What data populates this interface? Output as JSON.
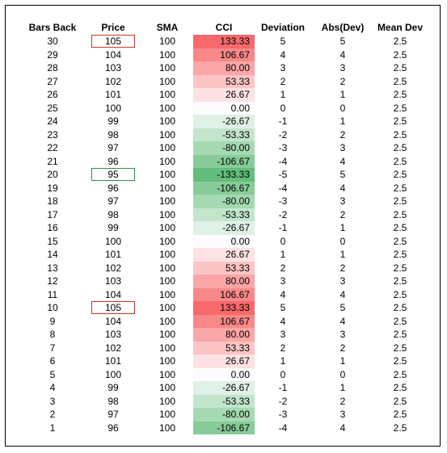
{
  "headers": [
    "Bars Back",
    "Price",
    "SMA",
    "CCI",
    "Deviation",
    "Abs(Dev)",
    "Mean Dev"
  ],
  "rows": [
    {
      "bars": "30",
      "price": "105",
      "sma": "100",
      "cci": "133.33",
      "dev": "5",
      "abs": "5",
      "mean": "2.5",
      "box": "red",
      "color": "#f8696b"
    },
    {
      "bars": "29",
      "price": "104",
      "sma": "100",
      "cci": "106.67",
      "dev": "4",
      "abs": "4",
      "mean": "2.5",
      "box": "",
      "color": "#f98889"
    },
    {
      "bars": "28",
      "price": "103",
      "sma": "100",
      "cci": "80.00",
      "dev": "3",
      "abs": "3",
      "mean": "2.5",
      "box": "",
      "color": "#faa6a7"
    },
    {
      "bars": "27",
      "price": "102",
      "sma": "100",
      "cci": "53.33",
      "dev": "2",
      "abs": "2",
      "mean": "2.5",
      "box": "",
      "color": "#fcc4c5"
    },
    {
      "bars": "26",
      "price": "101",
      "sma": "100",
      "cci": "26.67",
      "dev": "1",
      "abs": "1",
      "mean": "2.5",
      "box": "",
      "color": "#fde2e3"
    },
    {
      "bars": "25",
      "price": "100",
      "sma": "100",
      "cci": "0.00",
      "dev": "0",
      "abs": "0",
      "mean": "2.5",
      "box": "",
      "color": "#fcfcff"
    },
    {
      "bars": "24",
      "price": "99",
      "sma": "100",
      "cci": "-26.67",
      "dev": "-1",
      "abs": "1",
      "mean": "2.5",
      "box": "",
      "color": "#dff1e5"
    },
    {
      "bars": "23",
      "price": "98",
      "sma": "100",
      "cci": "-53.33",
      "dev": "-2",
      "abs": "2",
      "mean": "2.5",
      "box": "",
      "color": "#c2e5cc"
    },
    {
      "bars": "22",
      "price": "97",
      "sma": "100",
      "cci": "-80.00",
      "dev": "-3",
      "abs": "3",
      "mean": "2.5",
      "box": "",
      "color": "#a5d9b2"
    },
    {
      "bars": "21",
      "price": "96",
      "sma": "100",
      "cci": "-106.67",
      "dev": "-4",
      "abs": "4",
      "mean": "2.5",
      "box": "",
      "color": "#87cc98"
    },
    {
      "bars": "20",
      "price": "95",
      "sma": "100",
      "cci": "-133.33",
      "dev": "-5",
      "abs": "5",
      "mean": "2.5",
      "box": "green",
      "color": "#63be7b"
    },
    {
      "bars": "19",
      "price": "96",
      "sma": "100",
      "cci": "-106.67",
      "dev": "-4",
      "abs": "4",
      "mean": "2.5",
      "box": "",
      "color": "#87cc98"
    },
    {
      "bars": "18",
      "price": "97",
      "sma": "100",
      "cci": "-80.00",
      "dev": "-3",
      "abs": "3",
      "mean": "2.5",
      "box": "",
      "color": "#a5d9b2"
    },
    {
      "bars": "17",
      "price": "98",
      "sma": "100",
      "cci": "-53.33",
      "dev": "-2",
      "abs": "2",
      "mean": "2.5",
      "box": "",
      "color": "#c2e5cc"
    },
    {
      "bars": "16",
      "price": "99",
      "sma": "100",
      "cci": "-26.67",
      "dev": "-1",
      "abs": "1",
      "mean": "2.5",
      "box": "",
      "color": "#dff1e5"
    },
    {
      "bars": "15",
      "price": "100",
      "sma": "100",
      "cci": "0.00",
      "dev": "0",
      "abs": "0",
      "mean": "2.5",
      "box": "",
      "color": "#fcfcff"
    },
    {
      "bars": "14",
      "price": "101",
      "sma": "100",
      "cci": "26.67",
      "dev": "1",
      "abs": "1",
      "mean": "2.5",
      "box": "",
      "color": "#fde2e3"
    },
    {
      "bars": "13",
      "price": "102",
      "sma": "100",
      "cci": "53.33",
      "dev": "2",
      "abs": "2",
      "mean": "2.5",
      "box": "",
      "color": "#fcc4c5"
    },
    {
      "bars": "12",
      "price": "103",
      "sma": "100",
      "cci": "80.00",
      "dev": "3",
      "abs": "3",
      "mean": "2.5",
      "box": "",
      "color": "#faa6a7"
    },
    {
      "bars": "11",
      "price": "104",
      "sma": "100",
      "cci": "106.67",
      "dev": "4",
      "abs": "4",
      "mean": "2.5",
      "box": "",
      "color": "#f98889"
    },
    {
      "bars": "10",
      "price": "105",
      "sma": "100",
      "cci": "133.33",
      "dev": "5",
      "abs": "5",
      "mean": "2.5",
      "box": "red",
      "color": "#f8696b"
    },
    {
      "bars": "9",
      "price": "104",
      "sma": "100",
      "cci": "106.67",
      "dev": "4",
      "abs": "4",
      "mean": "2.5",
      "box": "",
      "color": "#f98889"
    },
    {
      "bars": "8",
      "price": "103",
      "sma": "100",
      "cci": "80.00",
      "dev": "3",
      "abs": "3",
      "mean": "2.5",
      "box": "",
      "color": "#faa6a7"
    },
    {
      "bars": "7",
      "price": "102",
      "sma": "100",
      "cci": "53.33",
      "dev": "2",
      "abs": "2",
      "mean": "2.5",
      "box": "",
      "color": "#fcc4c5"
    },
    {
      "bars": "6",
      "price": "101",
      "sma": "100",
      "cci": "26.67",
      "dev": "1",
      "abs": "1",
      "mean": "2.5",
      "box": "",
      "color": "#fde2e3"
    },
    {
      "bars": "5",
      "price": "100",
      "sma": "100",
      "cci": "0.00",
      "dev": "0",
      "abs": "0",
      "mean": "2.5",
      "box": "",
      "color": "#fcfcff"
    },
    {
      "bars": "4",
      "price": "99",
      "sma": "100",
      "cci": "-26.67",
      "dev": "-1",
      "abs": "1",
      "mean": "2.5",
      "box": "",
      "color": "#dff1e5"
    },
    {
      "bars": "3",
      "price": "98",
      "sma": "100",
      "cci": "-53.33",
      "dev": "-2",
      "abs": "2",
      "mean": "2.5",
      "box": "",
      "color": "#c2e5cc"
    },
    {
      "bars": "2",
      "price": "97",
      "sma": "100",
      "cci": "-80.00",
      "dev": "-3",
      "abs": "3",
      "mean": "2.5",
      "box": "",
      "color": "#a5d9b2"
    },
    {
      "bars": "1",
      "price": "96",
      "sma": "100",
      "cci": "-106.67",
      "dev": "-4",
      "abs": "4",
      "mean": "2.5",
      "box": "",
      "color": "#87cc98"
    }
  ]
}
